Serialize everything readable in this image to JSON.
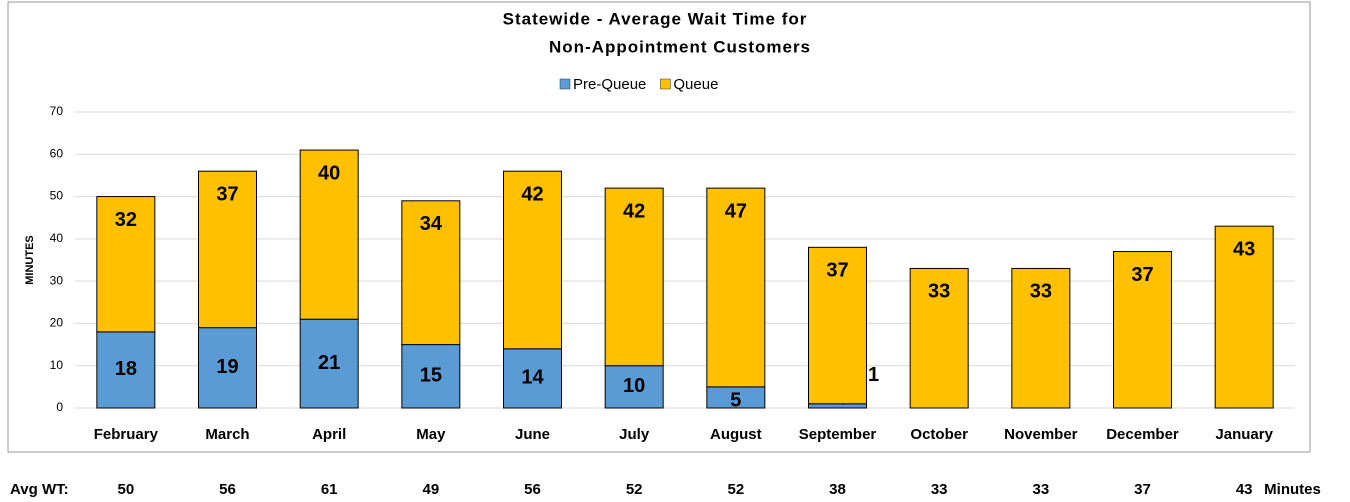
{
  "chart_data": {
    "type": "stacked_bar",
    "title_lines": [
      "Statewide -  Average Wait Time for",
      "Non-Appointment Customers"
    ],
    "y_label": "MINUTES",
    "categories": [
      "February",
      "March",
      "April",
      "May",
      "June",
      "July",
      "August",
      "September",
      "October",
      "November",
      "December",
      "January"
    ],
    "series": [
      {
        "name": "Pre-Queue",
        "color": "#5b9bd5",
        "values": [
          18,
          19,
          21,
          15,
          14,
          10,
          5,
          1,
          0,
          0,
          0,
          0
        ]
      },
      {
        "name": "Queue",
        "color": "#ffc000",
        "values": [
          32,
          37,
          40,
          34,
          42,
          42,
          47,
          37,
          33,
          33,
          37,
          43
        ]
      }
    ],
    "ylim": [
      0,
      70
    ],
    "yticks": [
      0,
      10,
      20,
      30,
      40,
      50,
      60,
      70
    ],
    "grid": true,
    "legend": "top",
    "footer": {
      "label": "Avg WT:",
      "values": [
        50,
        56,
        61,
        49,
        56,
        52,
        52,
        38,
        33,
        33,
        37,
        43
      ],
      "unit": "Minutes"
    }
  }
}
